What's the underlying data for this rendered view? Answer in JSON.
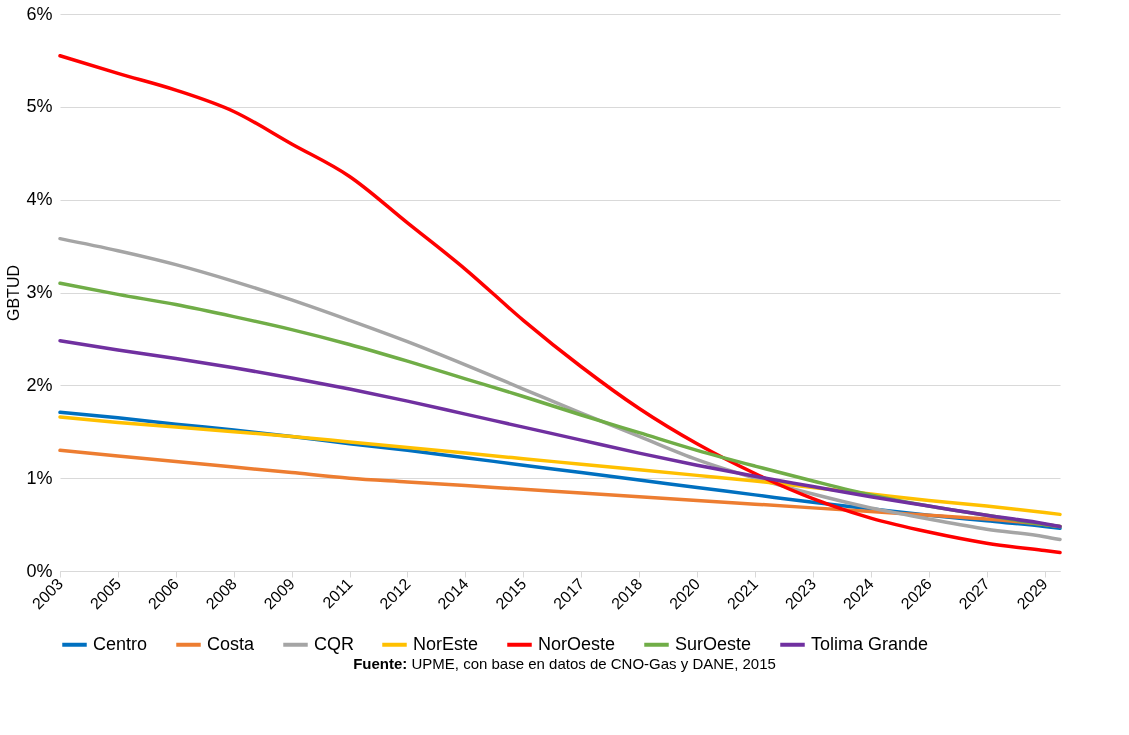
{
  "chart_data": {
    "type": "line",
    "ylabel": "GBTUD",
    "annotations": [
      "Fuente: UPME, con base en datos de CNO-Gas y DANE, 2015"
    ],
    "x": [
      2003.5,
      2005,
      2006.5,
      2008,
      2009.5,
      2011,
      2012.5,
      2014,
      2015.5,
      2017,
      2018.5,
      2020,
      2021.5,
      2023,
      2024.5,
      2026,
      2027.5,
      2029,
      2029.4
    ],
    "xlim": [
      2003.5,
      2029.4
    ],
    "xticks": [
      {
        "value": 2003.5,
        "label": "2003"
      },
      {
        "value": 2005,
        "label": "2005"
      },
      {
        "value": 2006.5,
        "label": "2006"
      },
      {
        "value": 2008,
        "label": "2008"
      },
      {
        "value": 2009.5,
        "label": "2009"
      },
      {
        "value": 2011,
        "label": "2011"
      },
      {
        "value": 2012.5,
        "label": "2012"
      },
      {
        "value": 2014,
        "label": "2014"
      },
      {
        "value": 2015.5,
        "label": "2015"
      },
      {
        "value": 2017,
        "label": "2017"
      },
      {
        "value": 2018.5,
        "label": "2018"
      },
      {
        "value": 2020,
        "label": "2020"
      },
      {
        "value": 2021.5,
        "label": "2021"
      },
      {
        "value": 2023,
        "label": "2023"
      },
      {
        "value": 2024.5,
        "label": "2024"
      },
      {
        "value": 2026,
        "label": "2026"
      },
      {
        "value": 2027.5,
        "label": "2027"
      },
      {
        "value": 2029,
        "label": "2029"
      }
    ],
    "ylim": [
      0,
      6
    ],
    "yticks": [
      {
        "value": 0,
        "label": "0%"
      },
      {
        "value": 1,
        "label": "1%"
      },
      {
        "value": 2,
        "label": "2%"
      },
      {
        "value": 3,
        "label": "3%"
      },
      {
        "value": 4,
        "label": "4%"
      },
      {
        "value": 5,
        "label": "5%"
      },
      {
        "value": 6,
        "label": "6%"
      }
    ],
    "grid": "y",
    "legend": "bottom",
    "marker": "none",
    "line_style": "solid",
    "series": [
      {
        "name": "Centro",
        "color": "#0070c0",
        "values": [
          1.71,
          1.65,
          1.58,
          1.52,
          1.45,
          1.37,
          1.3,
          1.22,
          1.14,
          1.06,
          0.98,
          0.9,
          0.82,
          0.74,
          0.67,
          0.6,
          0.54,
          0.48,
          0.46
        ]
      },
      {
        "name": "Costa",
        "color": "#ed7d31",
        "values": [
          1.3,
          1.24,
          1.18,
          1.12,
          1.06,
          1.0,
          0.96,
          0.92,
          0.88,
          0.84,
          0.8,
          0.76,
          0.72,
          0.68,
          0.64,
          0.6,
          0.56,
          0.5,
          0.48
        ]
      },
      {
        "name": "CQR",
        "color": "#a5a5a5",
        "values": [
          3.58,
          3.45,
          3.3,
          3.12,
          2.92,
          2.7,
          2.47,
          2.22,
          1.96,
          1.7,
          1.45,
          1.2,
          1.0,
          0.83,
          0.68,
          0.56,
          0.45,
          0.37,
          0.34
        ]
      },
      {
        "name": "NorEste",
        "color": "#ffc000",
        "values": [
          1.66,
          1.6,
          1.55,
          1.5,
          1.45,
          1.39,
          1.33,
          1.27,
          1.21,
          1.15,
          1.09,
          1.03,
          0.97,
          0.9,
          0.83,
          0.76,
          0.7,
          0.63,
          0.61
        ]
      },
      {
        "name": "NorOeste",
        "color": "#ff0000",
        "values": [
          5.55,
          5.36,
          5.18,
          4.95,
          4.6,
          4.25,
          3.75,
          3.25,
          2.7,
          2.2,
          1.75,
          1.37,
          1.05,
          0.78,
          0.57,
          0.42,
          0.3,
          0.22,
          0.2
        ]
      },
      {
        "name": "SurOeste",
        "color": "#70ad47",
        "values": [
          3.1,
          2.98,
          2.87,
          2.74,
          2.6,
          2.44,
          2.26,
          2.07,
          1.88,
          1.68,
          1.49,
          1.3,
          1.13,
          0.97,
          0.82,
          0.7,
          0.6,
          0.5,
          0.48
        ]
      },
      {
        "name": "Tolima Grande",
        "color": "#7030a0",
        "values": [
          2.48,
          2.38,
          2.29,
          2.19,
          2.08,
          1.96,
          1.83,
          1.69,
          1.55,
          1.41,
          1.27,
          1.14,
          1.02,
          0.91,
          0.8,
          0.7,
          0.6,
          0.51,
          0.48
        ]
      }
    ]
  }
}
